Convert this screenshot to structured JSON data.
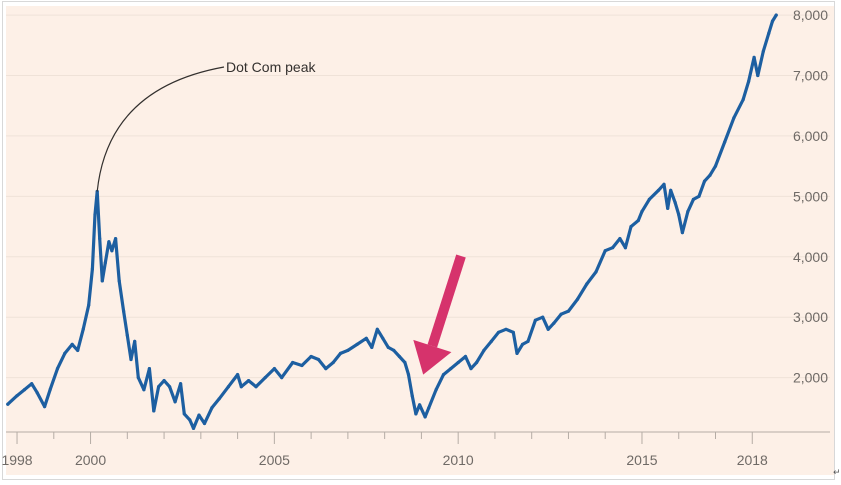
{
  "chart_data": {
    "type": "line",
    "title": "",
    "xlabel": "",
    "ylabel": "",
    "xlim": [
      1997.7,
      2018.7
    ],
    "ylim": [
      1100,
      8150
    ],
    "x_ticks": [
      {
        "value": 1998,
        "label": "1998"
      },
      {
        "value": 2000,
        "label": "2000"
      },
      {
        "value": 2005,
        "label": "2005"
      },
      {
        "value": 2010,
        "label": "2010"
      },
      {
        "value": 2015,
        "label": "2015"
      },
      {
        "value": 2018,
        "label": "2018"
      }
    ],
    "x_minor_ticks": [
      1999,
      2001,
      2002,
      2003,
      2004,
      2006,
      2007,
      2008,
      2009,
      2011,
      2012,
      2013,
      2014,
      2016,
      2017
    ],
    "y_ticks": [
      {
        "value": 2000,
        "label": "2,000"
      },
      {
        "value": 3000,
        "label": "3,000"
      },
      {
        "value": 4000,
        "label": "4,000"
      },
      {
        "value": 5000,
        "label": "5,000"
      },
      {
        "value": 6000,
        "label": "6,000"
      },
      {
        "value": 7000,
        "label": "7,000"
      },
      {
        "value": 8000,
        "label": "8,000"
      }
    ],
    "grid": true,
    "y_axis_side": "right",
    "background_color": "#fdf0e7",
    "grid_color": "#efe2d8",
    "axis_color": "#b5aca5",
    "series": [
      {
        "name": "",
        "color": "#1d5fa1",
        "points": [
          [
            1997.75,
            1560
          ],
          [
            1998.0,
            1700
          ],
          [
            1998.2,
            1800
          ],
          [
            1998.4,
            1900
          ],
          [
            1998.55,
            1750
          ],
          [
            1998.75,
            1520
          ],
          [
            1998.9,
            1800
          ],
          [
            1999.1,
            2150
          ],
          [
            1999.3,
            2400
          ],
          [
            1999.5,
            2550
          ],
          [
            1999.65,
            2450
          ],
          [
            1999.8,
            2800
          ],
          [
            1999.95,
            3200
          ],
          [
            2000.05,
            3800
          ],
          [
            2000.12,
            4700
          ],
          [
            2000.18,
            5080
          ],
          [
            2000.25,
            4300
          ],
          [
            2000.32,
            3600
          ],
          [
            2000.4,
            3900
          ],
          [
            2000.5,
            4250
          ],
          [
            2000.58,
            4100
          ],
          [
            2000.68,
            4300
          ],
          [
            2000.78,
            3600
          ],
          [
            2000.9,
            3100
          ],
          [
            2001.0,
            2700
          ],
          [
            2001.1,
            2300
          ],
          [
            2001.2,
            2600
          ],
          [
            2001.3,
            2000
          ],
          [
            2001.45,
            1800
          ],
          [
            2001.6,
            2150
          ],
          [
            2001.72,
            1450
          ],
          [
            2001.85,
            1850
          ],
          [
            2002.0,
            1950
          ],
          [
            2002.15,
            1850
          ],
          [
            2002.3,
            1600
          ],
          [
            2002.45,
            1900
          ],
          [
            2002.55,
            1400
          ],
          [
            2002.7,
            1300
          ],
          [
            2002.8,
            1160
          ],
          [
            2002.95,
            1380
          ],
          [
            2003.1,
            1240
          ],
          [
            2003.3,
            1500
          ],
          [
            2003.5,
            1650
          ],
          [
            2003.75,
            1850
          ],
          [
            2004.0,
            2050
          ],
          [
            2004.1,
            1850
          ],
          [
            2004.3,
            1950
          ],
          [
            2004.5,
            1850
          ],
          [
            2004.75,
            2000
          ],
          [
            2005.0,
            2150
          ],
          [
            2005.2,
            2000
          ],
          [
            2005.5,
            2250
          ],
          [
            2005.75,
            2200
          ],
          [
            2006.0,
            2350
          ],
          [
            2006.2,
            2300
          ],
          [
            2006.4,
            2150
          ],
          [
            2006.6,
            2250
          ],
          [
            2006.8,
            2400
          ],
          [
            2007.0,
            2450
          ],
          [
            2007.25,
            2550
          ],
          [
            2007.5,
            2650
          ],
          [
            2007.65,
            2500
          ],
          [
            2007.8,
            2800
          ],
          [
            2007.95,
            2650
          ],
          [
            2008.1,
            2500
          ],
          [
            2008.25,
            2450
          ],
          [
            2008.4,
            2350
          ],
          [
            2008.55,
            2250
          ],
          [
            2008.65,
            2050
          ],
          [
            2008.75,
            1700
          ],
          [
            2008.85,
            1400
          ],
          [
            2008.95,
            1550
          ],
          [
            2009.1,
            1350
          ],
          [
            2009.2,
            1500
          ],
          [
            2009.4,
            1800
          ],
          [
            2009.6,
            2050
          ],
          [
            2009.8,
            2150
          ],
          [
            2010.0,
            2250
          ],
          [
            2010.2,
            2350
          ],
          [
            2010.35,
            2150
          ],
          [
            2010.5,
            2250
          ],
          [
            2010.7,
            2450
          ],
          [
            2010.9,
            2600
          ],
          [
            2011.1,
            2750
          ],
          [
            2011.3,
            2800
          ],
          [
            2011.5,
            2750
          ],
          [
            2011.6,
            2400
          ],
          [
            2011.75,
            2550
          ],
          [
            2011.9,
            2600
          ],
          [
            2012.1,
            2950
          ],
          [
            2012.3,
            3000
          ],
          [
            2012.45,
            2800
          ],
          [
            2012.6,
            2900
          ],
          [
            2012.8,
            3050
          ],
          [
            2013.0,
            3100
          ],
          [
            2013.25,
            3300
          ],
          [
            2013.5,
            3550
          ],
          [
            2013.75,
            3750
          ],
          [
            2014.0,
            4100
          ],
          [
            2014.2,
            4150
          ],
          [
            2014.4,
            4300
          ],
          [
            2014.55,
            4150
          ],
          [
            2014.7,
            4500
          ],
          [
            2014.9,
            4600
          ],
          [
            2015.0,
            4750
          ],
          [
            2015.2,
            4950
          ],
          [
            2015.45,
            5100
          ],
          [
            2015.6,
            5200
          ],
          [
            2015.7,
            4800
          ],
          [
            2015.78,
            5100
          ],
          [
            2015.9,
            4900
          ],
          [
            2016.0,
            4700
          ],
          [
            2016.1,
            4400
          ],
          [
            2016.25,
            4750
          ],
          [
            2016.4,
            4950
          ],
          [
            2016.55,
            5000
          ],
          [
            2016.7,
            5250
          ],
          [
            2016.85,
            5350
          ],
          [
            2017.0,
            5500
          ],
          [
            2017.25,
            5900
          ],
          [
            2017.5,
            6300
          ],
          [
            2017.75,
            6600
          ],
          [
            2017.9,
            6900
          ],
          [
            2018.05,
            7300
          ],
          [
            2018.15,
            7000
          ],
          [
            2018.3,
            7400
          ],
          [
            2018.45,
            7700
          ],
          [
            2018.55,
            7900
          ],
          [
            2018.65,
            8000
          ]
        ]
      }
    ],
    "annotations": [
      {
        "text": "Dot Com peak",
        "x": 2000.18,
        "y": 5080
      },
      {
        "type": "arrow",
        "color": "#d6336c",
        "target_x": 2009.05,
        "target_y": 2050
      }
    ]
  },
  "corner_mark": "↵"
}
